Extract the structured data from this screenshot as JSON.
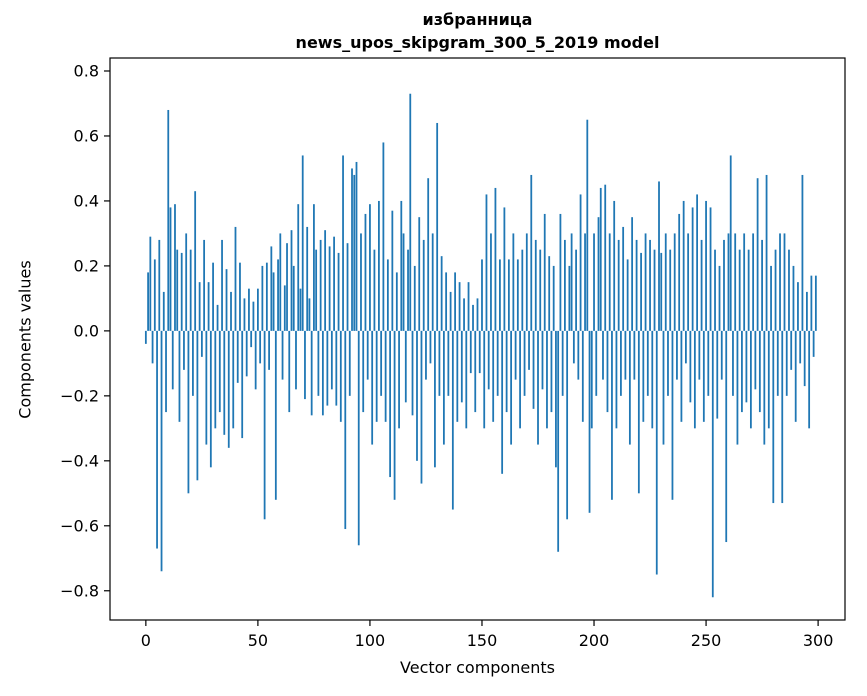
{
  "figure": {
    "background": "#ffffff"
  },
  "chart_data": {
    "type": "bar",
    "title": "избранница",
    "subtitle": "news_upos_skipgram_300_5_2019 model",
    "xlabel": "Vector components",
    "ylabel": "Components values",
    "bar_color": "#1f77b4",
    "axis_color": "#000000",
    "grid": false,
    "legend": "none",
    "xlim": [
      -16,
      312
    ],
    "ylim": [
      -0.89,
      0.84
    ],
    "x_ticks": [
      0,
      50,
      100,
      150,
      200,
      250,
      300
    ],
    "x_tick_labels": [
      "0",
      "50",
      "100",
      "150",
      "200",
      "250",
      "300"
    ],
    "y_ticks": [
      -0.8,
      -0.6,
      -0.4,
      -0.2,
      0.0,
      0.2,
      0.4,
      0.6,
      0.8
    ],
    "y_tick_labels": [
      "−0.8",
      "−0.6",
      "−0.4",
      "−0.2",
      "0.0",
      "0.2",
      "0.4",
      "0.6",
      "0.8"
    ],
    "bar_width": 0.8,
    "values": [
      -0.04,
      0.18,
      0.29,
      -0.1,
      0.22,
      -0.67,
      0.28,
      -0.74,
      0.12,
      -0.25,
      0.68,
      0.38,
      -0.18,
      0.39,
      0.25,
      -0.28,
      0.24,
      -0.12,
      0.3,
      -0.5,
      0.25,
      -0.2,
      0.43,
      -0.46,
      0.15,
      -0.08,
      0.28,
      -0.35,
      0.15,
      -0.42,
      0.21,
      -0.3,
      0.08,
      -0.25,
      0.28,
      -0.32,
      0.19,
      -0.36,
      0.12,
      -0.3,
      0.32,
      -0.16,
      0.21,
      -0.33,
      0.1,
      -0.14,
      0.13,
      -0.05,
      0.09,
      -0.18,
      0.13,
      -0.1,
      0.2,
      -0.58,
      0.21,
      -0.12,
      0.26,
      0.18,
      -0.52,
      0.22,
      0.3,
      -0.15,
      0.14,
      0.27,
      -0.25,
      0.31,
      0.2,
      -0.18,
      0.39,
      0.13,
      0.54,
      -0.21,
      0.32,
      0.1,
      -0.26,
      0.39,
      0.25,
      -0.2,
      0.28,
      -0.26,
      0.31,
      -0.23,
      0.26,
      -0.18,
      0.29,
      -0.23,
      0.24,
      -0.28,
      0.54,
      -0.61,
      0.27,
      -0.2,
      0.5,
      0.48,
      0.52,
      -0.66,
      0.3,
      -0.25,
      0.36,
      -0.15,
      0.39,
      -0.35,
      0.25,
      -0.28,
      0.4,
      -0.2,
      0.58,
      -0.28,
      0.22,
      -0.45,
      0.37,
      -0.52,
      0.18,
      -0.3,
      0.4,
      0.3,
      -0.22,
      0.25,
      0.73,
      -0.26,
      0.2,
      -0.4,
      0.35,
      -0.47,
      0.28,
      -0.15,
      0.47,
      -0.1,
      0.3,
      -0.42,
      0.64,
      -0.2,
      0.23,
      -0.35,
      0.18,
      -0.2,
      0.12,
      -0.55,
      0.18,
      -0.28,
      0.15,
      -0.22,
      0.1,
      -0.3,
      0.15,
      -0.13,
      0.08,
      -0.25,
      0.1,
      -0.13,
      0.22,
      -0.3,
      0.42,
      -0.18,
      0.3,
      -0.28,
      0.44,
      -0.2,
      0.22,
      -0.44,
      0.38,
      -0.25,
      0.22,
      -0.35,
      0.3,
      -0.15,
      0.22,
      -0.3,
      0.25,
      -0.2,
      0.3,
      -0.12,
      0.48,
      -0.24,
      0.28,
      -0.35,
      0.25,
      -0.18,
      0.36,
      -0.3,
      0.23,
      -0.25,
      0.2,
      -0.42,
      -0.68,
      0.36,
      -0.2,
      0.28,
      -0.58,
      0.2,
      0.3,
      -0.1,
      0.25,
      -0.15,
      0.42,
      -0.28,
      0.3,
      0.65,
      -0.56,
      -0.3,
      0.3,
      -0.2,
      0.35,
      0.44,
      -0.15,
      0.45,
      -0.25,
      0.3,
      -0.52,
      0.4,
      -0.3,
      0.28,
      -0.2,
      0.32,
      -0.15,
      0.22,
      -0.35,
      0.35,
      -0.15,
      0.28,
      -0.5,
      0.24,
      -0.28,
      0.3,
      -0.2,
      0.28,
      -0.3,
      0.25,
      -0.75,
      0.46,
      0.24,
      -0.35,
      0.3,
      -0.2,
      0.25,
      -0.52,
      0.3,
      -0.15,
      0.36,
      -0.28,
      0.4,
      -0.1,
      0.3,
      -0.22,
      0.38,
      -0.3,
      0.42,
      -0.15,
      0.28,
      -0.28,
      0.4,
      -0.2,
      0.38,
      -0.82,
      0.25,
      -0.27,
      0.2,
      -0.15,
      0.28,
      -0.65,
      0.3,
      0.54,
      -0.2,
      0.3,
      -0.35,
      0.25,
      -0.25,
      0.3,
      -0.22,
      0.25,
      -0.3,
      0.3,
      -0.18,
      0.47,
      -0.25,
      0.28,
      -0.35,
      0.48,
      -0.3,
      0.2,
      -0.53,
      0.25,
      -0.2,
      0.3,
      -0.53,
      0.3,
      -0.2,
      0.25,
      -0.12,
      0.2,
      -0.28,
      0.15,
      -0.1,
      0.48,
      -0.17,
      0.12,
      -0.3,
      0.17,
      -0.08,
      0.17
    ]
  }
}
